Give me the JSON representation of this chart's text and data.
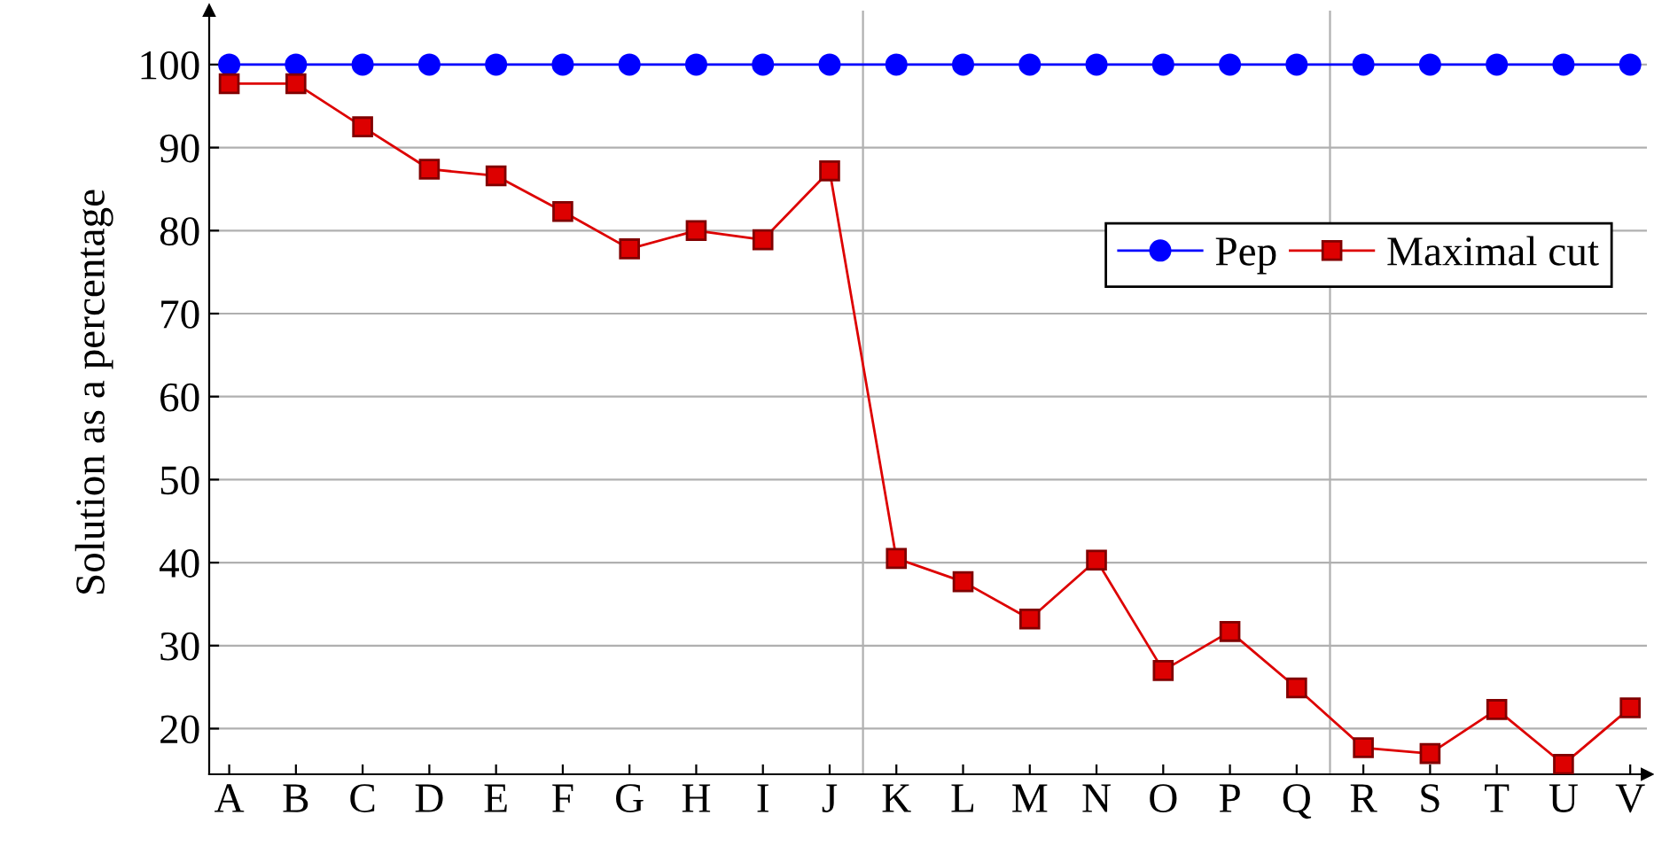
{
  "chart_data": {
    "type": "line",
    "ylabel": "Solution as a percentage",
    "categories": [
      "A",
      "B",
      "C",
      "D",
      "E",
      "F",
      "G",
      "H",
      "I",
      "J",
      "K",
      "L",
      "M",
      "N",
      "O",
      "P",
      "Q",
      "R",
      "S",
      "T",
      "U",
      "V"
    ],
    "series": [
      {
        "name": "Pep",
        "color": "#0000ff",
        "marker": "circle",
        "values": [
          100,
          100,
          100,
          100,
          100,
          100,
          100,
          100,
          100,
          100,
          100,
          100,
          100,
          100,
          100,
          100,
          100,
          100,
          100,
          100,
          100,
          100
        ]
      },
      {
        "name": "Maximal cut",
        "color": "#dd0000",
        "marker": "square",
        "values": [
          97.7,
          97.7,
          92.5,
          87.4,
          86.6,
          82.3,
          77.8,
          80,
          78.9,
          87.2,
          40.5,
          37.7,
          33.2,
          40.3,
          27,
          31.7,
          24.9,
          17.7,
          17,
          22.3,
          15.7,
          22.5
        ]
      }
    ],
    "ylim": [
      14.5,
      106.5
    ],
    "yticks": [
      20,
      30,
      40,
      50,
      60,
      70,
      80,
      90,
      100
    ],
    "grid": "y",
    "legend": "right"
  }
}
